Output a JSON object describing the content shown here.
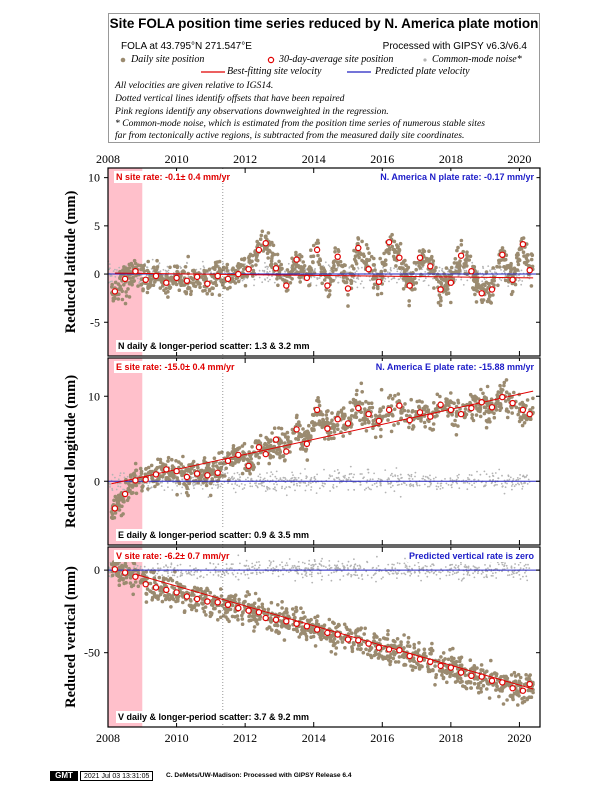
{
  "legend": {
    "title": "Site FOLA position time series reduced by N. America plate motion",
    "site_location": "FOLA at 43.795°N 271.547°E",
    "processing": "Processed with GIPSY v6.3/v6.4",
    "daily_label": "Daily site position",
    "average_label": "30-day-average site position",
    "common_mode_label": "Common-mode noise*",
    "fit_label": "Best-fitting site velocity",
    "plate_label": "Predicted plate velocity",
    "notes": [
      "All velocities are given relative to IGS14.",
      "Dotted vertical lines identify offsets that have been repaired",
      "Pink regions identify any observations downweighted in the regression.",
      "* Common-mode noise, which is estimated from the position time series of numerous stable sites",
      "far from tectonically active regions, is subtracted from the measured daily site coordinates."
    ]
  },
  "colors": {
    "daily": "#9b8b70",
    "common_mode": "#b4b4b4",
    "average_stroke": "#e00000",
    "fit": "#e00000",
    "plate": "#2020c0",
    "downweight": "#ffc0cb",
    "site_rate_text": "#e00000",
    "plate_rate_text": "#1c1cc8"
  },
  "footer": {
    "logo": "GMT",
    "timestamp": "2021 Jul 03 13:31:05",
    "credit": "C. DeMets/UW-Madison: Processed with GIPSY Release 6.4"
  },
  "chart_data": [
    {
      "type": "scatter",
      "component": "north",
      "ylabel": "Reduced latitude (mm)",
      "site_rate": "N site rate:  -0.1± 0.4 mm/yr",
      "plate_rate": "N. America N plate rate: -0.17 mm/yr",
      "scatter_text": "N daily & longer-period scatter:    1.3 &    3.2 mm",
      "xlim": [
        2008.0,
        2020.6
      ],
      "xticks": [
        2008,
        2010,
        2012,
        2014,
        2016,
        2018,
        2020
      ],
      "ylim": [
        -8.5,
        11
      ],
      "yticks": [
        10,
        5,
        0,
        -5
      ],
      "downweight_range": [
        2008.0,
        2009.0
      ],
      "offset_line": 2011.35,
      "fit_line": {
        "x": [
          2008.2,
          2020.4
        ],
        "y": [
          0.1,
          -0.4
        ]
      },
      "plate_line": {
        "x": [
          2008.0,
          2020.6
        ],
        "y": [
          0.0,
          0.0
        ]
      },
      "averages": {
        "x": [
          2008.2,
          2008.5,
          2008.8,
          2009.1,
          2009.4,
          2009.7,
          2010.0,
          2010.3,
          2010.6,
          2010.9,
          2011.2,
          2011.5,
          2011.8,
          2012.1,
          2012.4,
          2012.6,
          2012.9,
          2013.2,
          2013.5,
          2013.8,
          2014.1,
          2014.4,
          2014.7,
          2015.0,
          2015.3,
          2015.6,
          2015.9,
          2016.2,
          2016.5,
          2016.8,
          2017.1,
          2017.4,
          2017.7,
          2018.0,
          2018.3,
          2018.6,
          2018.9,
          2019.2,
          2019.5,
          2019.8,
          2020.1,
          2020.3
        ],
        "y": [
          -1.8,
          -0.5,
          0.3,
          -0.6,
          -0.2,
          -0.9,
          -0.4,
          -0.7,
          -0.3,
          -1.0,
          -0.2,
          -0.5,
          0.0,
          0.5,
          2.5,
          3.2,
          0.6,
          -1.2,
          1.5,
          -0.4,
          2.5,
          -1.2,
          1.8,
          -1.5,
          2.7,
          0.5,
          -0.8,
          3.3,
          1.7,
          -1.2,
          1.7,
          0.8,
          -1.6,
          -0.9,
          1.9,
          0.3,
          -2.0,
          -1.6,
          2.0,
          -0.6,
          3.1,
          0.4
        ]
      }
    },
    {
      "type": "scatter",
      "component": "east",
      "ylabel": "Reduced longitude (mm)",
      "site_rate": "E site rate: -15.0± 0.4 mm/yr",
      "plate_rate": "N. America E plate rate: -15.88 mm/yr",
      "scatter_text": "E daily & longer-period scatter:    0.9 &    3.5 mm",
      "xlim": [
        2008.0,
        2020.6
      ],
      "xticks": [
        2008,
        2010,
        2012,
        2014,
        2016,
        2018,
        2020
      ],
      "ylim": [
        -7.5,
        14.5
      ],
      "yticks": [
        10,
        0
      ],
      "downweight_range": [
        2008.0,
        2009.0
      ],
      "offset_line": 2011.35,
      "fit_line": {
        "x": [
          2008.1,
          2020.4
        ],
        "y": [
          -0.3,
          10.6
        ]
      },
      "plate_line": {
        "x": [
          2008.0,
          2020.6
        ],
        "y": [
          0.0,
          0.0
        ]
      },
      "averages": {
        "x": [
          2008.2,
          2008.5,
          2008.8,
          2009.1,
          2009.4,
          2009.7,
          2010.0,
          2010.3,
          2010.6,
          2010.9,
          2011.2,
          2011.5,
          2011.8,
          2012.1,
          2012.4,
          2012.6,
          2012.9,
          2013.2,
          2013.5,
          2013.8,
          2014.1,
          2014.4,
          2014.7,
          2015.0,
          2015.3,
          2015.6,
          2015.9,
          2016.2,
          2016.5,
          2016.8,
          2017.1,
          2017.4,
          2017.7,
          2018.0,
          2018.3,
          2018.6,
          2018.9,
          2019.2,
          2019.5,
          2019.8,
          2020.1,
          2020.3
        ],
        "y": [
          -3.2,
          -1.5,
          0.1,
          0.2,
          0.8,
          1.4,
          1.2,
          0.5,
          0.9,
          0.7,
          1.0,
          2.4,
          3.1,
          1.8,
          4.0,
          3.2,
          4.9,
          3.5,
          6.1,
          4.4,
          8.4,
          6.2,
          7.3,
          6.8,
          8.6,
          7.9,
          7.1,
          8.4,
          8.9,
          7.2,
          8.1,
          7.6,
          9.0,
          8.4,
          7.9,
          8.6,
          9.3,
          8.7,
          9.9,
          9.2,
          8.4,
          7.9
        ]
      }
    },
    {
      "type": "scatter",
      "component": "vertical",
      "ylabel": "Reduced vertical (mm)",
      "site_rate": "V site rate:  -6.2± 0.7 mm/yr",
      "plate_rate": "Predicted vertical rate is zero",
      "scatter_text": "V daily & longer-period scatter:    3.7 &    9.2 mm",
      "xlim": [
        2008.0,
        2020.6
      ],
      "xticks": [
        2008,
        2010,
        2012,
        2014,
        2016,
        2018,
        2020
      ],
      "ylim": [
        -95,
        14
      ],
      "yticks": [
        0,
        -50
      ],
      "downweight_range": [
        2008.0,
        2009.0
      ],
      "offset_line": 2011.35,
      "fit_line": {
        "x": [
          2008.8,
          2020.4
        ],
        "y": [
          -2.5,
          -72.0
        ]
      },
      "plate_line": {
        "x": [
          2008.0,
          2020.6
        ],
        "y": [
          0.0,
          0.0
        ]
      },
      "averages": {
        "x": [
          2008.2,
          2008.5,
          2008.8,
          2009.1,
          2009.4,
          2009.7,
          2010.0,
          2010.3,
          2010.6,
          2010.9,
          2011.2,
          2011.5,
          2011.8,
          2012.1,
          2012.4,
          2012.6,
          2012.9,
          2013.2,
          2013.5,
          2013.8,
          2014.1,
          2014.4,
          2014.7,
          2015.0,
          2015.3,
          2015.6,
          2015.9,
          2016.2,
          2016.5,
          2016.8,
          2017.1,
          2017.4,
          2017.7,
          2018.0,
          2018.3,
          2018.6,
          2018.9,
          2019.2,
          2019.5,
          2019.8,
          2020.1,
          2020.3
        ],
        "y": [
          0.5,
          -1.5,
          -4.0,
          -8.5,
          -10.5,
          -12.0,
          -13.5,
          -16.0,
          -17.5,
          -19.0,
          -19.5,
          -21.0,
          -23.0,
          -24.5,
          -25.5,
          -29.0,
          -30.0,
          -31.0,
          -32.5,
          -34.0,
          -36.0,
          -38.0,
          -39.0,
          -42.0,
          -42.5,
          -44.5,
          -47.0,
          -48.0,
          -48.5,
          -52.0,
          -54.0,
          -55.5,
          -58.0,
          -59.0,
          -62.0,
          -64.0,
          -64.5,
          -67.0,
          -68.0,
          -71.5,
          -73.0,
          -69.0
        ]
      }
    }
  ],
  "top_axis_ticks": [
    2008,
    2010,
    2012,
    2014,
    2016,
    2018,
    2020
  ],
  "bottom_axis_ticks": [
    2008,
    2010,
    2012,
    2014,
    2016,
    2018,
    2020
  ]
}
